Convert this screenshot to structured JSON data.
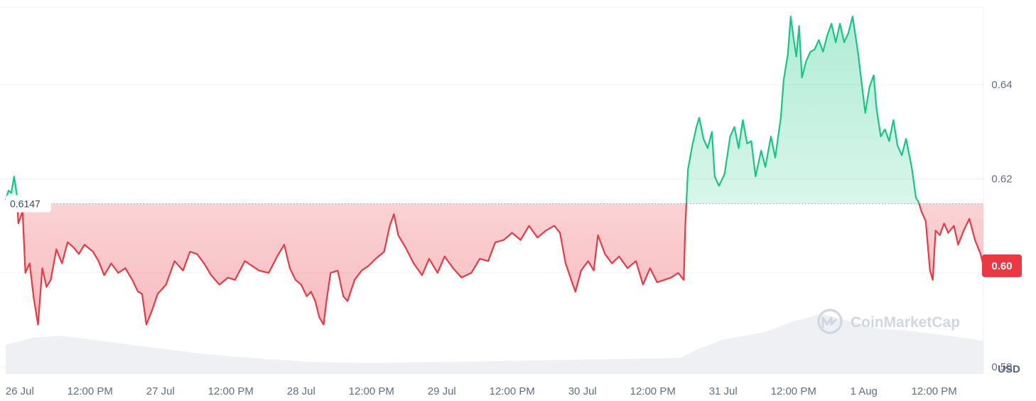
{
  "chart_data": {
    "type": "area",
    "currency_label": "USD",
    "reference_value": 0.6147,
    "reference_label": "0.6147",
    "current_price_label": "0.60",
    "watermark": "CoinMarketCap",
    "colors": {
      "up": "#16c784",
      "down": "#ea3943",
      "grid": "#eff2f5",
      "volume": "#eef0f3",
      "label": "#616e85"
    },
    "x_range": [
      0,
      6.95
    ],
    "ylim": [
      0.5785,
      0.6565
    ],
    "y_ticks": [
      {
        "value": 0.58,
        "label": "0.58"
      },
      {
        "value": 0.6,
        "label": "0.60"
      },
      {
        "value": 0.62,
        "label": "0.62"
      },
      {
        "value": 0.64,
        "label": "0.64"
      }
    ],
    "x_ticks": [
      {
        "pos": 0.1,
        "label": "26 Jul"
      },
      {
        "pos": 0.6,
        "label": "12:00 PM"
      },
      {
        "pos": 1.1,
        "label": "27 Jul"
      },
      {
        "pos": 1.6,
        "label": "12:00 PM"
      },
      {
        "pos": 2.1,
        "label": "28 Jul"
      },
      {
        "pos": 2.6,
        "label": "12:00 PM"
      },
      {
        "pos": 3.1,
        "label": "29 Jul"
      },
      {
        "pos": 3.6,
        "label": "12:00 PM"
      },
      {
        "pos": 4.1,
        "label": "30 Jul"
      },
      {
        "pos": 4.6,
        "label": "12:00 PM"
      },
      {
        "pos": 5.1,
        "label": "31 Jul"
      },
      {
        "pos": 5.6,
        "label": "12:00 PM"
      },
      {
        "pos": 6.1,
        "label": "1 Aug"
      },
      {
        "pos": 6.6,
        "label": "12:00 PM"
      }
    ],
    "price_series": [
      [
        0.0,
        0.6155
      ],
      [
        0.02,
        0.6175
      ],
      [
        0.04,
        0.617
      ],
      [
        0.06,
        0.6205
      ],
      [
        0.08,
        0.6165
      ],
      [
        0.09,
        0.6105
      ],
      [
        0.12,
        0.613
      ],
      [
        0.14,
        0.6
      ],
      [
        0.17,
        0.602
      ],
      [
        0.2,
        0.5945
      ],
      [
        0.23,
        0.589
      ],
      [
        0.26,
        0.601
      ],
      [
        0.29,
        0.597
      ],
      [
        0.32,
        0.5985
      ],
      [
        0.36,
        0.605
      ],
      [
        0.4,
        0.602
      ],
      [
        0.44,
        0.6065
      ],
      [
        0.48,
        0.6055
      ],
      [
        0.52,
        0.604
      ],
      [
        0.56,
        0.606
      ],
      [
        0.62,
        0.6045
      ],
      [
        0.66,
        0.6025
      ],
      [
        0.7,
        0.5995
      ],
      [
        0.75,
        0.602
      ],
      [
        0.8,
        0.6
      ],
      [
        0.85,
        0.601
      ],
      [
        0.9,
        0.5985
      ],
      [
        0.94,
        0.596
      ],
      [
        0.97,
        0.5955
      ],
      [
        1.0,
        0.589
      ],
      [
        1.04,
        0.592
      ],
      [
        1.08,
        0.5955
      ],
      [
        1.14,
        0.5975
      ],
      [
        1.2,
        0.6025
      ],
      [
        1.26,
        0.6005
      ],
      [
        1.31,
        0.6045
      ],
      [
        1.36,
        0.604
      ],
      [
        1.41,
        0.602
      ],
      [
        1.46,
        0.5995
      ],
      [
        1.52,
        0.5975
      ],
      [
        1.58,
        0.599
      ],
      [
        1.63,
        0.5985
      ],
      [
        1.7,
        0.6025
      ],
      [
        1.75,
        0.6015
      ],
      [
        1.8,
        0.6005
      ],
      [
        1.87,
        0.6
      ],
      [
        1.93,
        0.6035
      ],
      [
        1.98,
        0.606
      ],
      [
        2.02,
        0.601
      ],
      [
        2.06,
        0.5985
      ],
      [
        2.1,
        0.5975
      ],
      [
        2.14,
        0.595
      ],
      [
        2.17,
        0.596
      ],
      [
        2.2,
        0.594
      ],
      [
        2.23,
        0.5905
      ],
      [
        2.26,
        0.589
      ],
      [
        2.28,
        0.594
      ],
      [
        2.31,
        0.6
      ],
      [
        2.36,
        0.6005
      ],
      [
        2.4,
        0.595
      ],
      [
        2.43,
        0.594
      ],
      [
        2.48,
        0.5985
      ],
      [
        2.53,
        0.6005
      ],
      [
        2.58,
        0.6015
      ],
      [
        2.63,
        0.603
      ],
      [
        2.69,
        0.6045
      ],
      [
        2.73,
        0.61
      ],
      [
        2.76,
        0.6125
      ],
      [
        2.79,
        0.608
      ],
      [
        2.84,
        0.6055
      ],
      [
        2.9,
        0.602
      ],
      [
        2.96,
        0.5995
      ],
      [
        3.01,
        0.603
      ],
      [
        3.07,
        0.6
      ],
      [
        3.12,
        0.6035
      ],
      [
        3.18,
        0.601
      ],
      [
        3.24,
        0.599
      ],
      [
        3.31,
        0.6
      ],
      [
        3.37,
        0.603
      ],
      [
        3.43,
        0.6025
      ],
      [
        3.48,
        0.6065
      ],
      [
        3.54,
        0.607
      ],
      [
        3.6,
        0.6085
      ],
      [
        3.66,
        0.607
      ],
      [
        3.72,
        0.61
      ],
      [
        3.78,
        0.6075
      ],
      [
        3.84,
        0.609
      ],
      [
        3.9,
        0.61
      ],
      [
        3.94,
        0.6085
      ],
      [
        3.98,
        0.602
      ],
      [
        4.02,
        0.5985
      ],
      [
        4.05,
        0.596
      ],
      [
        4.09,
        0.6005
      ],
      [
        4.14,
        0.6025
      ],
      [
        4.18,
        0.6005
      ],
      [
        4.21,
        0.608
      ],
      [
        4.26,
        0.604
      ],
      [
        4.31,
        0.602
      ],
      [
        4.36,
        0.6035
      ],
      [
        4.42,
        0.601
      ],
      [
        4.48,
        0.6025
      ],
      [
        4.53,
        0.5975
      ],
      [
        4.58,
        0.601
      ],
      [
        4.63,
        0.598
      ],
      [
        4.68,
        0.5985
      ],
      [
        4.73,
        0.599
      ],
      [
        4.78,
        0.6
      ],
      [
        4.82,
        0.5985
      ],
      [
        4.83,
        0.6095
      ],
      [
        4.85,
        0.622
      ],
      [
        4.88,
        0.627
      ],
      [
        4.91,
        0.631
      ],
      [
        4.93,
        0.633
      ],
      [
        4.96,
        0.6285
      ],
      [
        4.99,
        0.6265
      ],
      [
        5.02,
        0.63
      ],
      [
        5.04,
        0.6205
      ],
      [
        5.07,
        0.6185
      ],
      [
        5.11,
        0.621
      ],
      [
        5.15,
        0.629
      ],
      [
        5.18,
        0.631
      ],
      [
        5.21,
        0.6265
      ],
      [
        5.24,
        0.6325
      ],
      [
        5.27,
        0.6275
      ],
      [
        5.3,
        0.628
      ],
      [
        5.33,
        0.6205
      ],
      [
        5.37,
        0.626
      ],
      [
        5.4,
        0.6225
      ],
      [
        5.44,
        0.629
      ],
      [
        5.47,
        0.6245
      ],
      [
        5.51,
        0.633
      ],
      [
        5.53,
        0.641
      ],
      [
        5.56,
        0.6465
      ],
      [
        5.58,
        0.6545
      ],
      [
        5.6,
        0.65
      ],
      [
        5.62,
        0.646
      ],
      [
        5.64,
        0.6525
      ],
      [
        5.66,
        0.6415
      ],
      [
        5.69,
        0.645
      ],
      [
        5.72,
        0.647
      ],
      [
        5.75,
        0.6475
      ],
      [
        5.78,
        0.6495
      ],
      [
        5.81,
        0.647
      ],
      [
        5.84,
        0.6505
      ],
      [
        5.87,
        0.653
      ],
      [
        5.9,
        0.649
      ],
      [
        5.93,
        0.653
      ],
      [
        5.96,
        0.649
      ],
      [
        5.99,
        0.651
      ],
      [
        6.02,
        0.6545
      ],
      [
        6.06,
        0.6465
      ],
      [
        6.09,
        0.639
      ],
      [
        6.11,
        0.634
      ],
      [
        6.14,
        0.6395
      ],
      [
        6.17,
        0.642
      ],
      [
        6.19,
        0.635
      ],
      [
        6.22,
        0.629
      ],
      [
        6.25,
        0.6305
      ],
      [
        6.28,
        0.628
      ],
      [
        6.31,
        0.6325
      ],
      [
        6.34,
        0.627
      ],
      [
        6.37,
        0.625
      ],
      [
        6.4,
        0.6285
      ],
      [
        6.44,
        0.6225
      ],
      [
        6.47,
        0.616
      ],
      [
        6.49,
        0.615
      ],
      [
        6.51,
        0.613
      ],
      [
        6.54,
        0.611
      ],
      [
        6.57,
        0.6005
      ],
      [
        6.59,
        0.5985
      ],
      [
        6.61,
        0.609
      ],
      [
        6.64,
        0.608
      ],
      [
        6.67,
        0.6105
      ],
      [
        6.7,
        0.6085
      ],
      [
        6.74,
        0.61
      ],
      [
        6.77,
        0.606
      ],
      [
        6.81,
        0.609
      ],
      [
        6.85,
        0.6115
      ],
      [
        6.89,
        0.607
      ],
      [
        6.93,
        0.604
      ],
      [
        6.95,
        0.6015
      ]
    ],
    "volume_series": [
      [
        0.0,
        0.32
      ],
      [
        0.2,
        0.4
      ],
      [
        0.4,
        0.42
      ],
      [
        0.6,
        0.38
      ],
      [
        0.85,
        0.33
      ],
      [
        1.1,
        0.28
      ],
      [
        1.4,
        0.22
      ],
      [
        1.8,
        0.17
      ],
      [
        2.2,
        0.13
      ],
      [
        2.6,
        0.12
      ],
      [
        3.0,
        0.13
      ],
      [
        3.4,
        0.14
      ],
      [
        3.8,
        0.15
      ],
      [
        4.2,
        0.16
      ],
      [
        4.6,
        0.17
      ],
      [
        4.8,
        0.18
      ],
      [
        4.9,
        0.26
      ],
      [
        5.1,
        0.38
      ],
      [
        5.4,
        0.46
      ],
      [
        5.6,
        0.58
      ],
      [
        5.8,
        0.66
      ],
      [
        6.0,
        0.58
      ],
      [
        6.2,
        0.5
      ],
      [
        6.4,
        0.48
      ],
      [
        6.6,
        0.44
      ],
      [
        6.8,
        0.4
      ],
      [
        6.95,
        0.36
      ]
    ]
  }
}
